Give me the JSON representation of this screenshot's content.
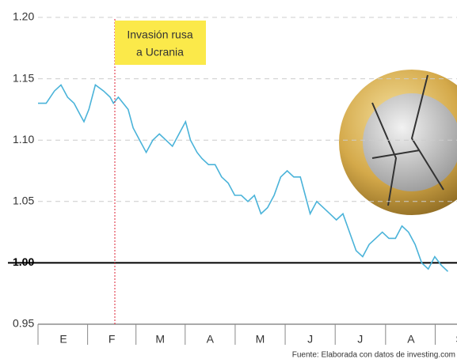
{
  "chart_data": {
    "type": "line",
    "annotation": [
      "Invasión rusa",
      "a Ucrania"
    ],
    "source": "Fuente: Elaborada con datos de investing.com",
    "x": [
      0,
      5,
      10,
      14,
      18,
      22,
      26,
      28,
      31,
      35,
      40,
      44,
      46,
      49,
      52,
      55,
      58,
      62,
      66,
      70,
      74,
      78,
      82,
      86,
      90,
      93,
      97,
      100,
      104,
      108,
      112,
      116,
      120,
      124,
      128,
      132,
      136,
      140,
      144,
      148,
      152,
      156,
      160,
      163,
      166,
      170,
      174,
      178,
      182,
      186,
      190,
      194,
      198,
      202,
      206,
      210,
      214,
      218,
      222,
      226,
      230,
      234,
      238,
      242,
      246,
      250
    ],
    "series": [
      {
        "color": "#4ab3d9",
        "values": [
          1.13,
          1.13,
          1.14,
          1.145,
          1.135,
          1.13,
          1.12,
          1.115,
          1.125,
          1.145,
          1.14,
          1.135,
          1.13,
          1.135,
          1.13,
          1.125,
          1.11,
          1.1,
          1.09,
          1.1,
          1.105,
          1.1,
          1.095,
          1.105,
          1.115,
          1.1,
          1.09,
          1.085,
          1.08,
          1.08,
          1.07,
          1.065,
          1.055,
          1.055,
          1.05,
          1.055,
          1.04,
          1.045,
          1.055,
          1.07,
          1.075,
          1.07,
          1.07,
          1.055,
          1.04,
          1.05,
          1.045,
          1.04,
          1.035,
          1.04,
          1.025,
          1.01,
          1.005,
          1.015,
          1.02,
          1.025,
          1.02,
          1.02,
          1.03,
          1.025,
          1.015,
          1.0,
          0.995,
          1.005,
          0.998,
          0.993
        ]
      }
    ],
    "xlim": [
      0,
      255
    ],
    "xticks": [
      {
        "value": 15.5,
        "label": "E"
      },
      {
        "value": 45,
        "label": "F"
      },
      {
        "value": 74.5,
        "label": "M"
      },
      {
        "value": 105,
        "label": "A"
      },
      {
        "value": 135.5,
        "label": "M"
      },
      {
        "value": 166,
        "label": "J"
      },
      {
        "value": 196.5,
        "label": "J"
      },
      {
        "value": 227.5,
        "label": "A"
      },
      {
        "value": 257,
        "label": "S"
      }
    ],
    "ylim": [
      0.95,
      1.2
    ],
    "yticks": [
      0.95,
      {
        "value": 1.0,
        "label": "1.00"
      },
      1.05,
      {
        "value": 1.1,
        "label": "1.10"
      },
      1.15,
      {
        "value": 1.2,
        "label": "1.20"
      }
    ],
    "highlight_y": 1.0,
    "grid": true
  }
}
